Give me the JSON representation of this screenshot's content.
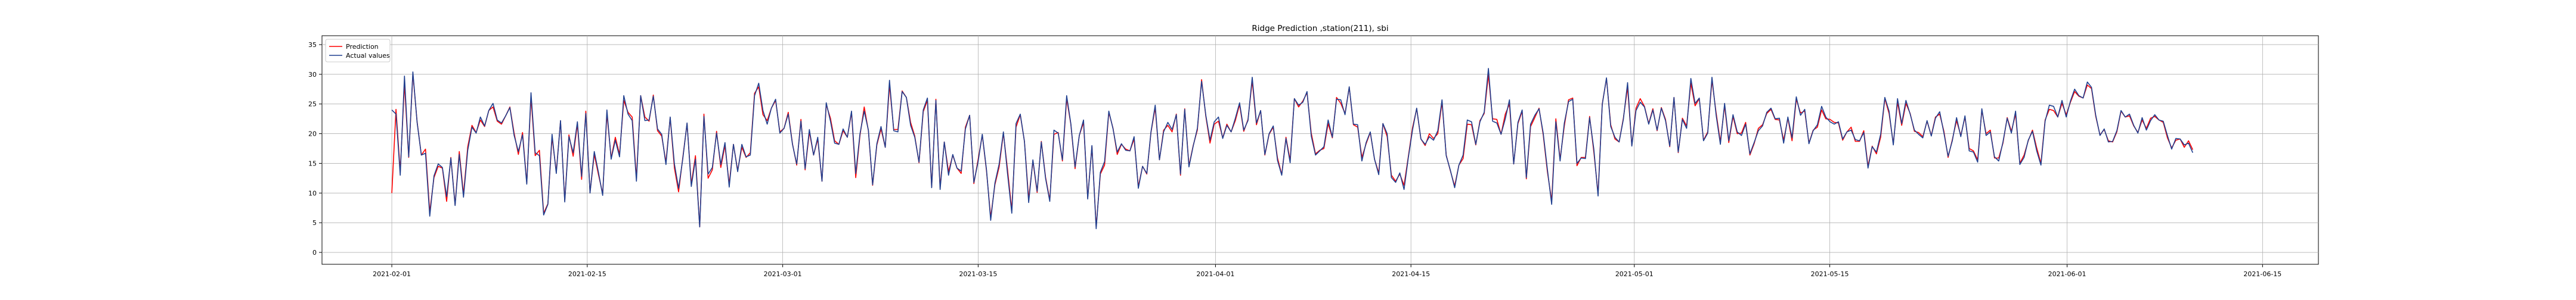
{
  "chart_data": {
    "type": "line",
    "title": "Ridge Prediction ,station(211), sbi",
    "xlabel": "",
    "ylabel": "",
    "x_start": "2021-02-01",
    "x_end": "2021-06-10",
    "xlim": [
      "2021-01-27",
      "2021-06-19"
    ],
    "ylim": [
      -2,
      36.5
    ],
    "yticks": [
      0,
      5,
      10,
      15,
      20,
      25,
      30,
      35
    ],
    "xticks": [
      "2021-02-01",
      "2021-02-15",
      "2021-03-01",
      "2021-03-15",
      "2021-04-01",
      "2021-04-15",
      "2021-05-01",
      "2021-05-15",
      "2021-06-01",
      "2021-06-15"
    ],
    "grid": true,
    "legend_position": "top-left",
    "series": [
      {
        "name": "Prediction",
        "color": "#ff0000",
        "values": [
          10.0,
          24.1,
          13.6,
          28.4,
          16.0,
          30.1,
          22.0,
          16.4,
          17.4,
          6.8,
          12.6,
          14.5,
          14.2,
          8.6,
          16.0,
          8.0,
          17.0,
          9.8,
          17.8,
          21.4,
          20.2,
          22.3,
          21.2,
          23.9,
          24.5,
          22.1,
          21.6,
          23.0,
          24.5,
          20.1,
          16.5,
          20.2,
          11.7,
          26.1,
          16.3,
          17.2,
          6.6,
          8.2,
          19.4,
          13.6,
          22.1,
          8.7,
          19.8,
          16.2,
          21.6,
          12.3,
          23.8,
          10.1,
          16.5,
          13.1,
          9.9,
          23.4,
          15.9,
          19.4,
          16.5,
          25.6,
          23.6,
          22.8,
          12.5,
          26.4,
          22.8,
          22.1,
          26.5,
          20.5,
          19.6,
          15.2,
          22.7,
          14.2,
          10.2,
          16.0,
          21.7,
          11.5,
          16.3,
          4.3,
          23.3,
          12.5,
          13.9,
          20.4,
          14.3,
          18.0,
          11.5,
          18.2,
          13.8,
          17.7,
          16.0,
          16.8,
          26.8,
          27.9,
          23.2,
          22.2,
          24.3,
          25.6,
          20.3,
          20.9,
          23.6,
          18.3,
          14.7,
          22.4,
          13.9,
          20.3,
          16.4,
          19.1,
          12.0,
          24.9,
          22.6,
          18.8,
          18.2,
          20.5,
          19.4,
          23.6,
          12.6,
          19.7,
          24.5,
          20.5,
          11.3,
          18.1,
          20.8,
          17.7,
          28.2,
          20.7,
          20.7,
          27.2,
          26.1,
          21.9,
          19.6,
          15.1,
          23.7,
          25.6,
          11.0,
          25.8,
          10.9,
          18.6,
          13.6,
          16.4,
          14.2,
          13.3,
          21.1,
          23.1,
          11.6,
          15.6,
          19.8,
          13.7,
          5.9,
          11.4,
          14.4,
          20.1,
          13.9,
          7.1,
          21.1,
          23.2,
          18.7,
          9.0,
          15.4,
          10.1,
          18.7,
          12.7,
          8.8,
          19.9,
          20.2,
          15.4,
          25.9,
          21.6,
          14.1,
          19.7,
          21.9,
          9.2,
          17.9,
          4.3,
          13.2,
          14.7,
          23.6,
          20.9,
          16.5,
          18.2,
          17.4,
          17.1,
          19.1,
          11.1,
          14.5,
          13.2,
          20.2,
          24.4,
          15.6,
          20.6,
          21.4,
          20.3,
          23.3,
          13.0,
          24.2,
          14.6,
          18.0,
          20.6,
          29.1,
          22.9,
          18.4,
          21.6,
          22.1,
          19.3,
          21.6,
          20.3,
          22.2,
          24.9,
          20.4,
          22.4,
          28.9,
          21.5,
          23.9,
          16.4,
          19.9,
          21.1,
          15.9,
          13.1,
          19.4,
          15.5,
          25.9,
          24.5,
          25.5,
          26.9,
          20.1,
          16.6,
          17.2,
          17.5,
          21.7,
          19.3,
          26.1,
          25.1,
          23.4,
          27.8,
          21.5,
          21.1,
          16.0,
          18.3,
          20.2,
          15.7,
          13.4,
          21.7,
          19.5,
          13.0,
          12.0,
          13.2,
          11.3,
          16.1,
          21.0,
          24.2,
          19.1,
          18.0,
          20.0,
          19.2,
          20.0,
          25.3,
          16.4,
          13.7,
          11.2,
          14.7,
          15.8,
          21.6,
          21.5,
          18.1,
          22.2,
          23.4,
          29.9,
          22.5,
          22.4,
          19.9,
          23.3,
          25.0,
          14.9,
          21.7,
          23.8,
          12.4,
          21.2,
          22.7,
          24.3,
          19.8,
          13.5,
          8.7,
          22.5,
          15.7,
          21.3,
          25.7,
          26.0,
          14.6,
          16.0,
          16.0,
          22.9,
          16.9,
          9.9,
          25.0,
          29.3,
          21.5,
          19.1,
          18.6,
          22.6,
          27.8,
          18.0,
          24.3,
          25.9,
          24.6,
          21.7,
          24.2,
          20.5,
          24.4,
          22.4,
          17.8,
          26.1,
          16.8,
          22.6,
          21.3,
          28.5,
          24.7,
          25.9,
          18.9,
          20.3,
          29.0,
          23.5,
          18.6,
          24.7,
          18.5,
          22.9,
          20.0,
          20.1,
          21.9,
          16.4,
          18.3,
          20.9,
          21.5,
          23.4,
          24.1,
          22.4,
          22.3,
          18.9,
          22.6,
          18.8,
          25.8,
          23.5,
          23.8,
          18.4,
          20.6,
          21.1,
          24.0,
          22.5,
          22.4,
          21.9,
          21.8,
          18.9,
          20.3,
          21.1,
          18.7,
          18.7,
          20.5,
          14.5,
          17.9,
          16.6,
          19.4,
          25.9,
          23.4,
          18.3,
          25.3,
          21.4,
          25.1,
          23.4,
          20.4,
          20.2,
          19.5,
          22.1,
          19.7,
          22.8,
          23.3,
          20.4,
          16.0,
          19.0,
          22.2,
          19.7,
          22.8,
          17.5,
          17.1,
          15.6,
          24.0,
          20.0,
          20.6,
          15.9,
          15.9,
          18.4,
          22.7,
          20.4,
          23.3,
          15.0,
          16.4,
          18.8,
          20.6,
          17.6,
          15.0,
          22.3,
          24.1,
          23.9,
          22.8,
          25.1,
          23.2,
          25.3,
          27.1,
          26.3,
          26.0,
          28.2,
          27.6,
          22.9,
          19.8,
          20.7,
          18.8,
          18.6,
          20.3,
          23.8,
          22.8,
          23.0,
          21.3,
          20.2,
          22.3,
          20.9,
          22.6,
          22.9,
          22.3,
          21.9,
          19.3,
          17.6,
          18.9,
          19.1,
          17.7,
          18.8,
          17.3
        ]
      },
      {
        "name": "Actual values",
        "color": "#1f3f8f",
        "values": [
          24.0,
          23.3,
          13.0,
          29.7,
          16.1,
          30.4,
          21.9,
          16.4,
          16.7,
          6.1,
          12.9,
          14.9,
          14.3,
          9.4,
          15.9,
          7.9,
          16.5,
          9.3,
          17.2,
          21.1,
          20.1,
          22.8,
          21.3,
          23.9,
          25.1,
          22.3,
          21.8,
          23.0,
          24.4,
          19.7,
          17.0,
          19.8,
          11.5,
          26.9,
          16.8,
          16.3,
          6.3,
          8.1,
          19.9,
          13.3,
          22.2,
          8.5,
          19.5,
          16.8,
          22.0,
          12.8,
          23.4,
          10.0,
          17.0,
          13.5,
          9.6,
          24.0,
          15.7,
          18.9,
          16.1,
          26.4,
          23.3,
          22.2,
          12.0,
          26.4,
          22.2,
          22.3,
          26.3,
          20.8,
          19.9,
          14.8,
          22.8,
          14.9,
          10.8,
          15.8,
          21.8,
          11.1,
          15.7,
          4.3,
          22.9,
          13.2,
          14.3,
          20.1,
          14.8,
          18.5,
          11.0,
          18.2,
          13.6,
          18.2,
          16.1,
          16.4,
          26.4,
          28.5,
          23.9,
          21.6,
          24.3,
          25.8,
          20.1,
          20.9,
          23.3,
          18.2,
          14.9,
          22.1,
          14.1,
          20.7,
          16.4,
          19.4,
          12.0,
          25.2,
          22.1,
          18.4,
          18.2,
          20.8,
          19.4,
          23.8,
          13.3,
          20.0,
          23.8,
          20.6,
          11.4,
          18.3,
          21.2,
          17.7,
          29.0,
          20.5,
          20.3,
          27.1,
          26.1,
          21.4,
          19.4,
          15.2,
          24.0,
          26.0,
          10.9,
          25.6,
          10.6,
          18.6,
          13.0,
          16.5,
          14.2,
          13.7,
          20.8,
          23.1,
          11.8,
          15.2,
          19.9,
          13.9,
          5.4,
          11.7,
          14.9,
          20.3,
          13.2,
          6.6,
          21.7,
          23.3,
          18.7,
          8.4,
          15.6,
          10.3,
          18.6,
          12.5,
          8.6,
          20.6,
          20.1,
          15.6,
          26.4,
          21.7,
          14.4,
          19.7,
          22.3,
          9.0,
          18.0,
          4.0,
          13.5,
          15.3,
          23.8,
          20.8,
          16.9,
          18.3,
          17.2,
          17.1,
          19.5,
          10.8,
          14.5,
          13.3,
          20.3,
          24.8,
          15.6,
          20.3,
          21.9,
          20.7,
          23.2,
          13.2,
          24.1,
          14.4,
          17.9,
          20.9,
          28.8,
          23.1,
          18.9,
          22.0,
          22.8,
          19.2,
          21.4,
          20.3,
          22.6,
          25.2,
          20.6,
          22.2,
          29.5,
          21.8,
          23.9,
          16.5,
          20.0,
          21.3,
          15.5,
          13.0,
          19.2,
          15.1,
          25.9,
          24.8,
          25.3,
          27.1,
          19.6,
          16.4,
          17.1,
          17.8,
          22.3,
          19.4,
          25.8,
          25.7,
          23.2,
          27.9,
          21.6,
          21.5,
          15.4,
          18.5,
          20.3,
          15.7,
          13.1,
          21.7,
          20.0,
          12.6,
          11.8,
          13.4,
          10.6,
          15.9,
          20.6,
          24.3,
          19.1,
          18.2,
          19.5,
          18.9,
          20.5,
          25.7,
          16.3,
          13.8,
          10.9,
          14.7,
          16.4,
          22.3,
          22.0,
          18.2,
          22.0,
          23.6,
          31.0,
          22.1,
          21.8,
          19.9,
          22.5,
          25.7,
          14.9,
          21.9,
          24.0,
          12.6,
          21.6,
          23.1,
          24.2,
          20.1,
          13.9,
          8.1,
          22.0,
          15.4,
          21.8,
          25.4,
          25.8,
          15.0,
          15.9,
          15.8,
          22.7,
          17.4,
          9.5,
          24.9,
          29.4,
          21.2,
          19.4,
          18.6,
          22.4,
          28.6,
          17.9,
          23.9,
          25.3,
          24.5,
          21.6,
          24.0,
          20.6,
          24.3,
          22.2,
          17.9,
          26.1,
          16.9,
          22.4,
          20.9,
          29.3,
          25.1,
          26.0,
          18.8,
          20.1,
          29.5,
          23.1,
          18.2,
          25.1,
          18.8,
          23.2,
          20.3,
          19.7,
          21.6,
          16.6,
          18.5,
          20.5,
          21.3,
          23.6,
          24.3,
          22.5,
          22.6,
          18.4,
          22.8,
          19.3,
          26.2,
          23.1,
          24.1,
          18.3,
          20.5,
          21.5,
          24.6,
          22.8,
          22.0,
          21.6,
          22.0,
          19.1,
          20.3,
          20.6,
          19.0,
          18.8,
          20.2,
          14.2,
          17.8,
          16.9,
          19.9,
          26.1,
          23.8,
          18.1,
          25.9,
          21.7,
          25.6,
          23.3,
          20.6,
          19.9,
          19.3,
          22.2,
          19.6,
          22.6,
          23.7,
          20.1,
          16.2,
          18.8,
          22.7,
          19.5,
          23.0,
          17.1,
          16.9,
          15.2,
          24.2,
          19.7,
          20.3,
          16.1,
          15.4,
          18.6,
          22.6,
          20.1,
          23.8,
          14.8,
          16.0,
          18.9,
          20.4,
          17.1,
          14.7,
          22.1,
          24.8,
          24.6,
          22.8,
          25.6,
          22.8,
          25.5,
          27.5,
          26.4,
          26.0,
          28.7,
          27.8,
          23.1,
          19.7,
          20.8,
          18.6,
          18.7,
          20.5,
          23.9,
          22.8,
          23.3,
          21.4,
          20.1,
          22.7,
          20.6,
          22.2,
          23.2,
          22.3,
          22.1,
          19.7,
          17.4,
          19.2,
          19.1,
          18.1,
          18.4,
          16.8
        ]
      }
    ]
  }
}
